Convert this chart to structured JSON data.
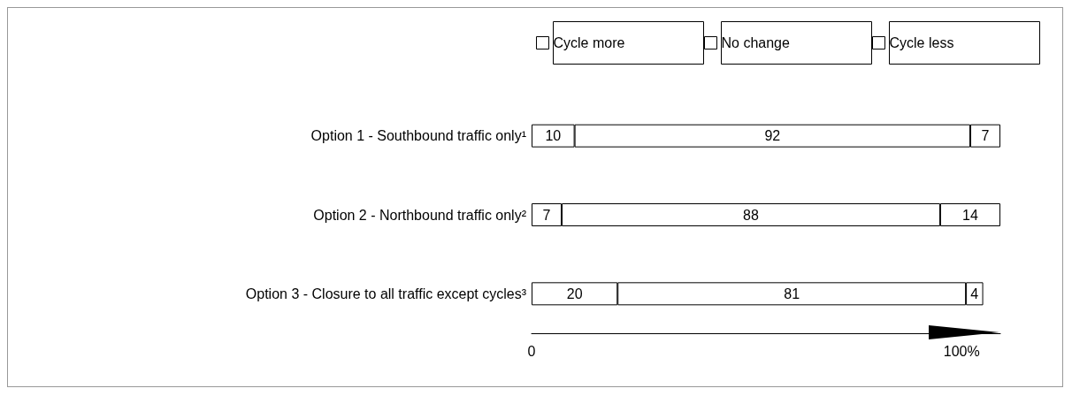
{
  "chart_data": {
    "type": "bar",
    "orientation": "horizontal",
    "stacked": true,
    "data_labels": true,
    "legend": "top",
    "categories": [
      "Option 1 - Southbound traffic only¹",
      "Option 2 - Northbound traffic only²",
      "Option 3 - Closure to all traffic except cycles³"
    ],
    "series": [
      {
        "name": "Cycle more",
        "values": [
          10,
          7,
          20
        ]
      },
      {
        "name": "No change",
        "values": [
          92,
          88,
          81
        ]
      },
      {
        "name": "Cycle less",
        "values": [
          7,
          14,
          4
        ]
      }
    ],
    "xlim": [
      0,
      109
    ],
    "xticks": [
      0,
      {
        "value": 100,
        "label": "100%"
      }
    ]
  }
}
